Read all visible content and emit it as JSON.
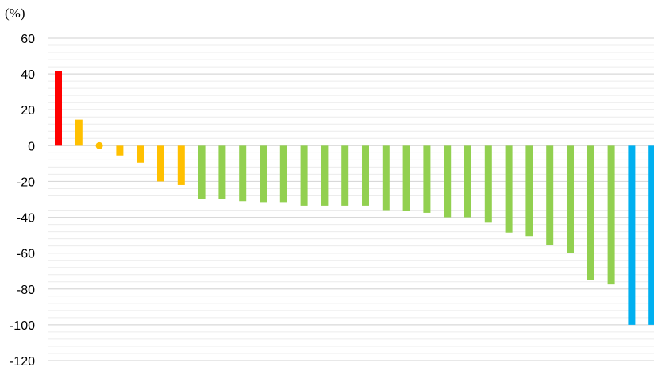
{
  "chart_data": {
    "type": "bar",
    "y_unit_label": "(%)",
    "ylim": [
      -120,
      60
    ],
    "y_ticks": [
      "60",
      "40",
      "20",
      "0",
      "-20",
      "-40",
      "-60",
      "-80",
      "-100",
      "-120"
    ],
    "minor_grid_step": 4,
    "grid": true,
    "legend": "none",
    "colors": {
      "red": "#ff0000",
      "orange": "#ffc000",
      "green": "#92d050",
      "blue": "#00b0f0",
      "major_grid": "#d9d9d9",
      "minor_grid": "#ececec"
    },
    "bars": [
      {
        "value": 41.5,
        "color": "red"
      },
      {
        "value": 14.5,
        "color": "orange"
      },
      {
        "value": 0,
        "color": "orange",
        "marker": "dot"
      },
      {
        "value": -5.5,
        "color": "orange"
      },
      {
        "value": -9.5,
        "color": "orange"
      },
      {
        "value": -20,
        "color": "orange"
      },
      {
        "value": -22,
        "color": "orange"
      },
      {
        "value": -30,
        "color": "green"
      },
      {
        "value": -30,
        "color": "green"
      },
      {
        "value": -31,
        "color": "green"
      },
      {
        "value": -31.5,
        "color": "green"
      },
      {
        "value": -31.5,
        "color": "green"
      },
      {
        "value": -33.5,
        "color": "green"
      },
      {
        "value": -33.5,
        "color": "green"
      },
      {
        "value": -33.5,
        "color": "green"
      },
      {
        "value": -33.5,
        "color": "green"
      },
      {
        "value": -36,
        "color": "green"
      },
      {
        "value": -36.5,
        "color": "green"
      },
      {
        "value": -37.5,
        "color": "green"
      },
      {
        "value": -40,
        "color": "green"
      },
      {
        "value": -40,
        "color": "green"
      },
      {
        "value": -43,
        "color": "green"
      },
      {
        "value": -48.5,
        "color": "green"
      },
      {
        "value": -50.5,
        "color": "green"
      },
      {
        "value": -55.5,
        "color": "green"
      },
      {
        "value": -60,
        "color": "green"
      },
      {
        "value": -75,
        "color": "green"
      },
      {
        "value": -77.5,
        "color": "green"
      },
      {
        "value": -100,
        "color": "blue"
      },
      {
        "value": -100,
        "color": "blue"
      }
    ]
  }
}
